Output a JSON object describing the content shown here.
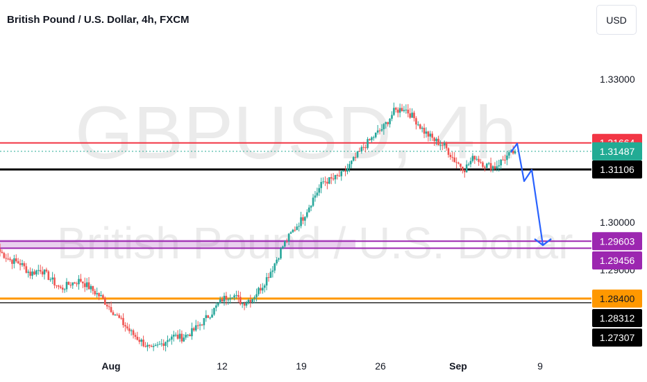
{
  "header": {
    "title": "British Pound / U.S. Dollar, 4h, FXCM",
    "currency_button": "USD"
  },
  "watermark": {
    "symbol": "GBPUSD, 4h",
    "name": "British Pound / U.S. Dollar"
  },
  "colors": {
    "up": "#26a69a",
    "down": "#ef5350",
    "resistance": "#f23645",
    "support": "#000000",
    "zone": "#9c27b0",
    "orange_level": "#ff9800",
    "projection": "#2962ff",
    "current_price": "#22ab94"
  },
  "chart_data": {
    "type": "candlestick",
    "symbol": "GBPUSD",
    "timeframe": "4h",
    "source": "FXCM",
    "currency": "USD",
    "ylim": [
      1.2715,
      1.3395
    ],
    "y_ticks": [
      "1.33000",
      "1.30000",
      "1.29000"
    ],
    "x_ticks": [
      "Aug",
      "12",
      "19",
      "26",
      "Sep",
      "9"
    ],
    "price_labels": [
      {
        "value": "1.31664",
        "level": 1.31664,
        "style": "resistance"
      },
      {
        "value": "1.31487",
        "level": 1.31487,
        "style": "current"
      },
      {
        "value": "1.31106",
        "level": 1.31106,
        "style": "support"
      },
      {
        "value": "1.29603",
        "level": 1.29603,
        "style": "zone"
      },
      {
        "value": "1.29456",
        "level": 1.29456,
        "style": "zone"
      },
      {
        "value": "1.28400",
        "level": 1.284,
        "style": "orange"
      },
      {
        "value": "1.28312",
        "level": 1.28312,
        "style": "dark"
      },
      {
        "value": "1.27307",
        "level": 1.27307,
        "style": "dark"
      }
    ],
    "horizontal_lines": [
      {
        "level": 1.31664,
        "style": "resistance"
      },
      {
        "level": 1.31487,
        "style": "current"
      },
      {
        "level": 1.31106,
        "style": "support"
      },
      {
        "level": 1.29603,
        "style": "zone"
      },
      {
        "level": 1.29456,
        "style": "zone"
      },
      {
        "level": 1.284,
        "style": "orange"
      },
      {
        "level": 1.28312,
        "style": "black-thin"
      }
    ],
    "projection_path": [
      [
        1.3147,
        1.3164
      ],
      [
        1.3164,
        1.3108
      ],
      [
        1.3108,
        1.313
      ],
      [
        1.313,
        1.2958
      ],
      [
        1.2958,
        1.2945
      ],
      [
        1.2945,
        1.296
      ]
    ],
    "candles_anchor": [
      1.2938,
      1.2921,
      1.2914,
      1.2892,
      1.2902,
      1.2881,
      1.286,
      1.2872,
      1.2878,
      1.286,
      1.2843,
      1.2818,
      1.2792,
      1.2768,
      1.275,
      1.2731,
      1.2745,
      1.2762,
      1.2758,
      1.277,
      1.279,
      1.2812,
      1.2838,
      1.285,
      1.283,
      1.2842,
      1.2868,
      1.2905,
      1.295,
      1.2982,
      1.301,
      1.305,
      1.3085,
      1.309,
      1.3102,
      1.313,
      1.3158,
      1.318,
      1.32,
      1.3232,
      1.324,
      1.3218,
      1.319,
      1.3172,
      1.316,
      1.313,
      1.3112,
      1.3138,
      1.312,
      1.3116,
      1.3135,
      1.3149
    ]
  }
}
